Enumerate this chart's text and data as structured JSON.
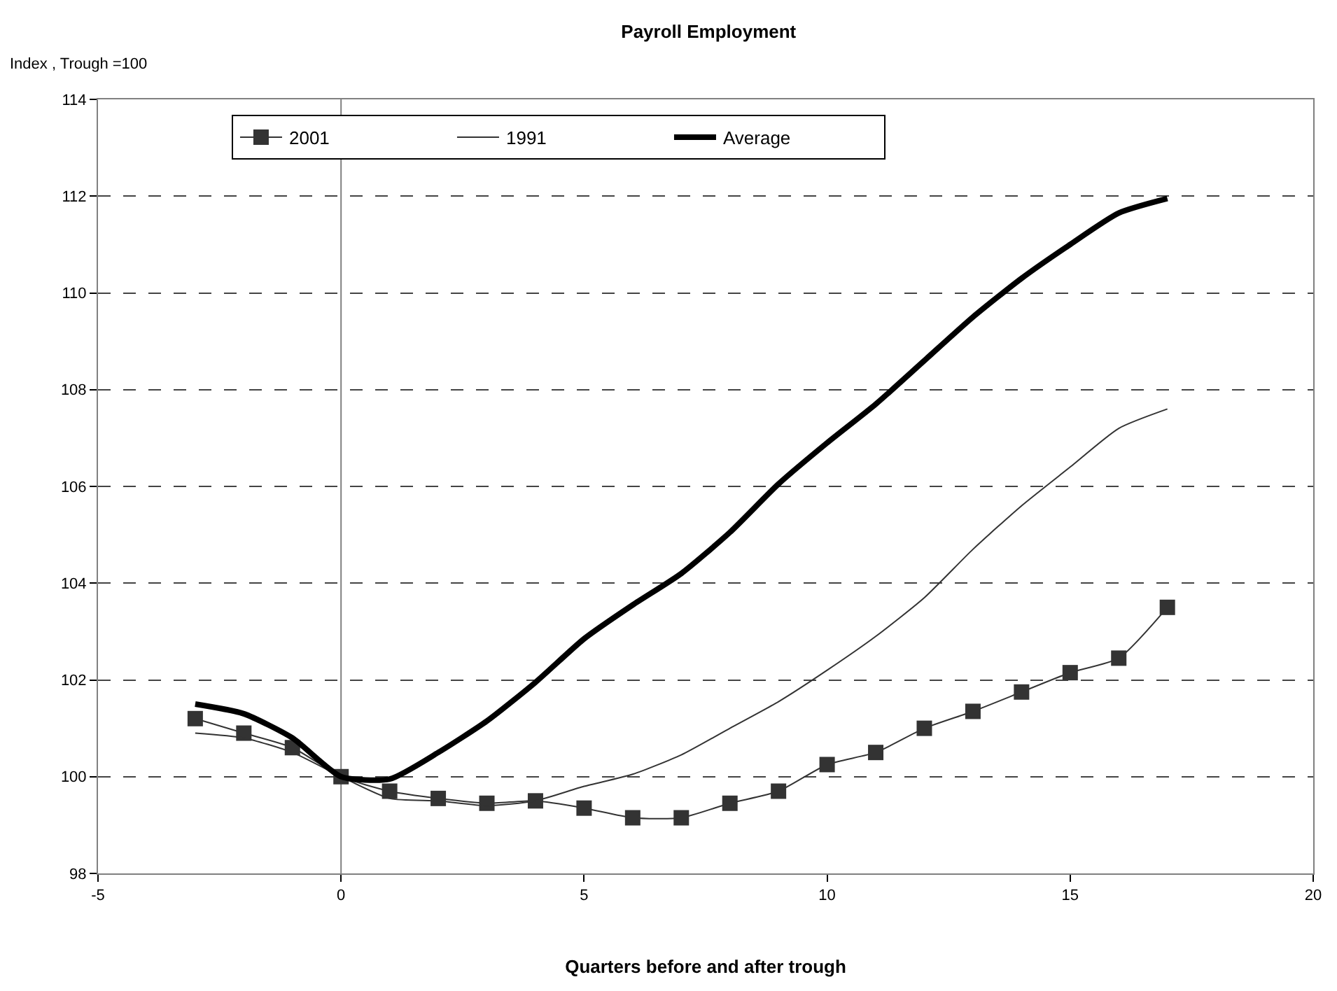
{
  "chart_data": {
    "type": "line",
    "title": "Payroll Employment",
    "ylabel": "Index , Trough =100",
    "xlabel": "Quarters before and after trough",
    "x": [
      -3,
      -2,
      -1,
      0,
      1,
      2,
      3,
      4,
      5,
      6,
      7,
      8,
      9,
      10,
      11,
      12,
      13,
      14,
      15,
      16,
      17
    ],
    "series": [
      {
        "name": "2001",
        "color": "#333333",
        "marker": "square",
        "values": [
          101.2,
          100.9,
          100.6,
          100,
          99.7,
          99.55,
          99.45,
          99.5,
          99.35,
          99.15,
          99.15,
          99.45,
          99.7,
          100.25,
          100.5,
          101.0,
          101.35,
          101.75,
          102.15,
          102.45,
          103.5
        ]
      },
      {
        "name": "1991",
        "color": "#333333",
        "marker": "none",
        "values": [
          100.9,
          100.8,
          100.5,
          100,
          99.55,
          99.5,
          99.4,
          99.5,
          99.8,
          100.05,
          100.45,
          101.0,
          101.55,
          102.2,
          102.9,
          103.7,
          104.7,
          105.6,
          106.4,
          107.2,
          107.6
        ]
      },
      {
        "name": "Average",
        "color": "#000000",
        "marker": "none",
        "values": [
          101.5,
          101.3,
          100.8,
          100,
          99.95,
          100.5,
          101.15,
          101.95,
          102.85,
          103.55,
          104.2,
          105.05,
          106.05,
          106.9,
          107.7,
          108.6,
          109.5,
          110.3,
          111.0,
          111.65,
          111.95
        ]
      }
    ],
    "xlim": [
      -5,
      20
    ],
    "xticks": [
      -5,
      0,
      5,
      10,
      15,
      20
    ],
    "ylim": [
      98,
      114
    ],
    "yticks": [
      98,
      100,
      102,
      104,
      106,
      108,
      110,
      112,
      114
    ],
    "grid": "y",
    "legend": "top left",
    "line_style": "solid",
    "ref_lines": [
      {
        "axis": "x",
        "value": 0,
        "color": "#808080"
      }
    ]
  }
}
